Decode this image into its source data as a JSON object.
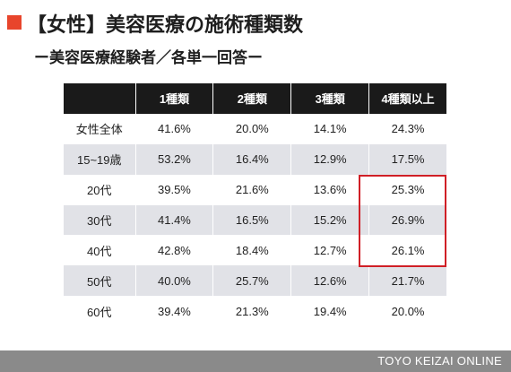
{
  "header": {
    "title": "【女性】美容医療の施術種類数",
    "subtitle": "ー美容医療経験者／各単一回答ー"
  },
  "table": {
    "columns": [
      "",
      "1種類",
      "2種類",
      "3種類",
      "4種類以上"
    ],
    "rows": [
      {
        "label": "女性全体",
        "values": [
          "41.6%",
          "20.0%",
          "14.1%",
          "24.3%"
        ]
      },
      {
        "label": "15~19歳",
        "values": [
          "53.2%",
          "16.4%",
          "12.9%",
          "17.5%"
        ]
      },
      {
        "label": "20代",
        "values": [
          "39.5%",
          "21.6%",
          "13.6%",
          "25.3%"
        ]
      },
      {
        "label": "30代",
        "values": [
          "41.4%",
          "16.5%",
          "15.2%",
          "26.9%"
        ]
      },
      {
        "label": "40代",
        "values": [
          "42.8%",
          "18.4%",
          "12.7%",
          "26.1%"
        ]
      },
      {
        "label": "50代",
        "values": [
          "40.0%",
          "25.7%",
          "12.6%",
          "21.7%"
        ]
      },
      {
        "label": "60代",
        "values": [
          "39.4%",
          "21.3%",
          "19.4%",
          "20.0%"
        ]
      }
    ]
  },
  "colors": {
    "accent": "#e8452c",
    "header_bg": "#1a1a1a",
    "stripe": "#e1e2e7",
    "highlight": "#d01f26",
    "footer_bg": "#8a8a8a"
  },
  "footer": {
    "brand": "TOYO KEIZAI ONLINE"
  }
}
